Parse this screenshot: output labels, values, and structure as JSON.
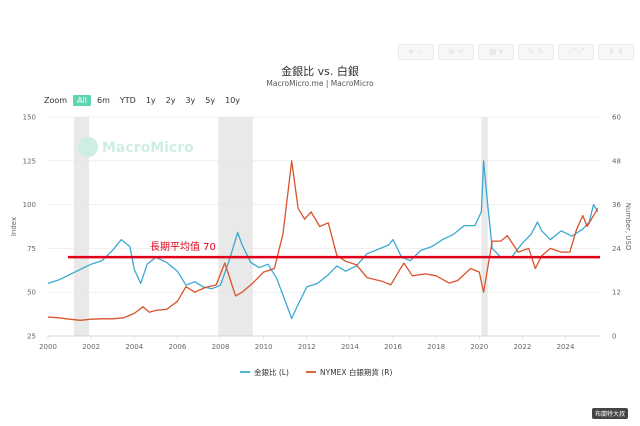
{
  "toolbar": {
    "icons": [
      "star-icon",
      "share-icon",
      "chart-type-icon",
      "edit-icon",
      "fullscreen-icon",
      "download-icon"
    ]
  },
  "colors": {
    "series1": "#3aa9d1",
    "series2": "#d9532b",
    "annotation": "#e0001a",
    "recession": "#e4e4e4",
    "zoom_active": "#5ed6b3",
    "watermark": "#cfeee3"
  },
  "zoom": {
    "label": "Zoom",
    "options": [
      "All",
      "6m",
      "YTD",
      "1y",
      "2y",
      "3y",
      "5y",
      "10y"
    ],
    "selected": "All"
  },
  "watermark": "MacroMicro",
  "badge": "布蘭特大叔",
  "chart_data": {
    "type": "line",
    "title": "金銀比 vs. 白銀",
    "subtitle": "MacroMicro.me | MacroMicro",
    "ylabel_left": "Index",
    "ylabel_right": "Number, USD",
    "xlim": [
      2000,
      2025.6
    ],
    "ylim_left": [
      25,
      150
    ],
    "ylim_right": [
      0,
      60
    ],
    "yticks_left": [
      25,
      50,
      75,
      100,
      125,
      150
    ],
    "yticks_right": [
      0,
      12,
      24,
      36,
      48,
      60
    ],
    "xticks": [
      "2000",
      "2002",
      "2004",
      "2006",
      "2008",
      "2010",
      "2012",
      "2014",
      "2016",
      "2018",
      "2020",
      "2022",
      "2024"
    ],
    "grid": true,
    "legend_position": "bottom",
    "recession_bands": [
      [
        2001.2,
        2001.9
      ],
      [
        2007.9,
        2009.5
      ],
      [
        2020.1,
        2020.4
      ]
    ],
    "annotation": {
      "label": "長期平均值 70",
      "value": 70,
      "axis": "left"
    },
    "series": [
      {
        "name": "金銀比 (L)",
        "axis": "left",
        "color": "#3aa9d1",
        "points": [
          [
            2000.0,
            55
          ],
          [
            2000.5,
            57
          ],
          [
            2001.0,
            60
          ],
          [
            2001.5,
            63
          ],
          [
            2002.0,
            66
          ],
          [
            2002.5,
            68
          ],
          [
            2003.0,
            74
          ],
          [
            2003.4,
            80
          ],
          [
            2003.8,
            76
          ],
          [
            2004.0,
            63
          ],
          [
            2004.3,
            55
          ],
          [
            2004.6,
            66
          ],
          [
            2005.0,
            70
          ],
          [
            2005.5,
            67
          ],
          [
            2006.0,
            62
          ],
          [
            2006.4,
            54
          ],
          [
            2006.8,
            56
          ],
          [
            2007.2,
            53
          ],
          [
            2007.6,
            52
          ],
          [
            2008.0,
            54
          ],
          [
            2008.4,
            68
          ],
          [
            2008.8,
            84
          ],
          [
            2009.0,
            77
          ],
          [
            2009.4,
            67
          ],
          [
            2009.8,
            64
          ],
          [
            2010.2,
            66
          ],
          [
            2010.6,
            58
          ],
          [
            2011.0,
            45
          ],
          [
            2011.3,
            35
          ],
          [
            2011.6,
            43
          ],
          [
            2012.0,
            53
          ],
          [
            2012.5,
            55
          ],
          [
            2013.0,
            60
          ],
          [
            2013.4,
            65
          ],
          [
            2013.8,
            62
          ],
          [
            2014.3,
            65
          ],
          [
            2014.8,
            72
          ],
          [
            2015.2,
            74
          ],
          [
            2015.8,
            77
          ],
          [
            2016.0,
            80
          ],
          [
            2016.4,
            70
          ],
          [
            2016.8,
            68
          ],
          [
            2017.3,
            74
          ],
          [
            2017.8,
            76
          ],
          [
            2018.3,
            80
          ],
          [
            2018.8,
            83
          ],
          [
            2019.3,
            88
          ],
          [
            2019.8,
            88
          ],
          [
            2020.1,
            96
          ],
          [
            2020.2,
            125
          ],
          [
            2020.35,
            105
          ],
          [
            2020.6,
            75
          ],
          [
            2021.0,
            70
          ],
          [
            2021.5,
            70
          ],
          [
            2022.0,
            78
          ],
          [
            2022.4,
            83
          ],
          [
            2022.7,
            90
          ],
          [
            2022.9,
            85
          ],
          [
            2023.3,
            80
          ],
          [
            2023.8,
            85
          ],
          [
            2024.3,
            82
          ],
          [
            2024.8,
            86
          ],
          [
            2025.1,
            90
          ],
          [
            2025.3,
            100
          ],
          [
            2025.5,
            96
          ]
        ]
      },
      {
        "name": "NYMEX 白銀期貨 (R)",
        "axis": "right",
        "color": "#d9532b",
        "points": [
          [
            2000.0,
            5.2
          ],
          [
            2000.5,
            5.0
          ],
          [
            2001.0,
            4.6
          ],
          [
            2001.5,
            4.3
          ],
          [
            2002.0,
            4.6
          ],
          [
            2002.5,
            4.7
          ],
          [
            2003.0,
            4.7
          ],
          [
            2003.5,
            5.0
          ],
          [
            2004.0,
            6.2
          ],
          [
            2004.4,
            8.0
          ],
          [
            2004.7,
            6.5
          ],
          [
            2005.0,
            7.0
          ],
          [
            2005.5,
            7.3
          ],
          [
            2006.0,
            9.5
          ],
          [
            2006.4,
            13.5
          ],
          [
            2006.8,
            12.0
          ],
          [
            2007.3,
            13.3
          ],
          [
            2007.8,
            14.0
          ],
          [
            2008.2,
            20.0
          ],
          [
            2008.7,
            11.0
          ],
          [
            2009.0,
            12.0
          ],
          [
            2009.5,
            14.5
          ],
          [
            2010.0,
            17.5
          ],
          [
            2010.5,
            18.5
          ],
          [
            2010.9,
            28.0
          ],
          [
            2011.3,
            48.0
          ],
          [
            2011.6,
            35.0
          ],
          [
            2011.9,
            32.0
          ],
          [
            2012.2,
            34.0
          ],
          [
            2012.6,
            30.0
          ],
          [
            2013.0,
            31.0
          ],
          [
            2013.4,
            22.0
          ],
          [
            2013.8,
            20.5
          ],
          [
            2014.3,
            19.5
          ],
          [
            2014.8,
            16.0
          ],
          [
            2015.5,
            15.0
          ],
          [
            2015.9,
            14.0
          ],
          [
            2016.5,
            20.0
          ],
          [
            2016.9,
            16.5
          ],
          [
            2017.5,
            17.0
          ],
          [
            2018.0,
            16.5
          ],
          [
            2018.6,
            14.5
          ],
          [
            2019.0,
            15.2
          ],
          [
            2019.6,
            18.5
          ],
          [
            2020.0,
            17.5
          ],
          [
            2020.2,
            12.0
          ],
          [
            2020.6,
            26.0
          ],
          [
            2021.0,
            26.0
          ],
          [
            2021.3,
            27.5
          ],
          [
            2021.8,
            23.0
          ],
          [
            2022.3,
            24.0
          ],
          [
            2022.6,
            18.5
          ],
          [
            2022.9,
            22.0
          ],
          [
            2023.3,
            24.0
          ],
          [
            2023.8,
            23.0
          ],
          [
            2024.2,
            23.0
          ],
          [
            2024.5,
            29.0
          ],
          [
            2024.8,
            33.0
          ],
          [
            2025.0,
            30.0
          ],
          [
            2025.3,
            33.0
          ],
          [
            2025.5,
            35.0
          ]
        ]
      }
    ]
  }
}
